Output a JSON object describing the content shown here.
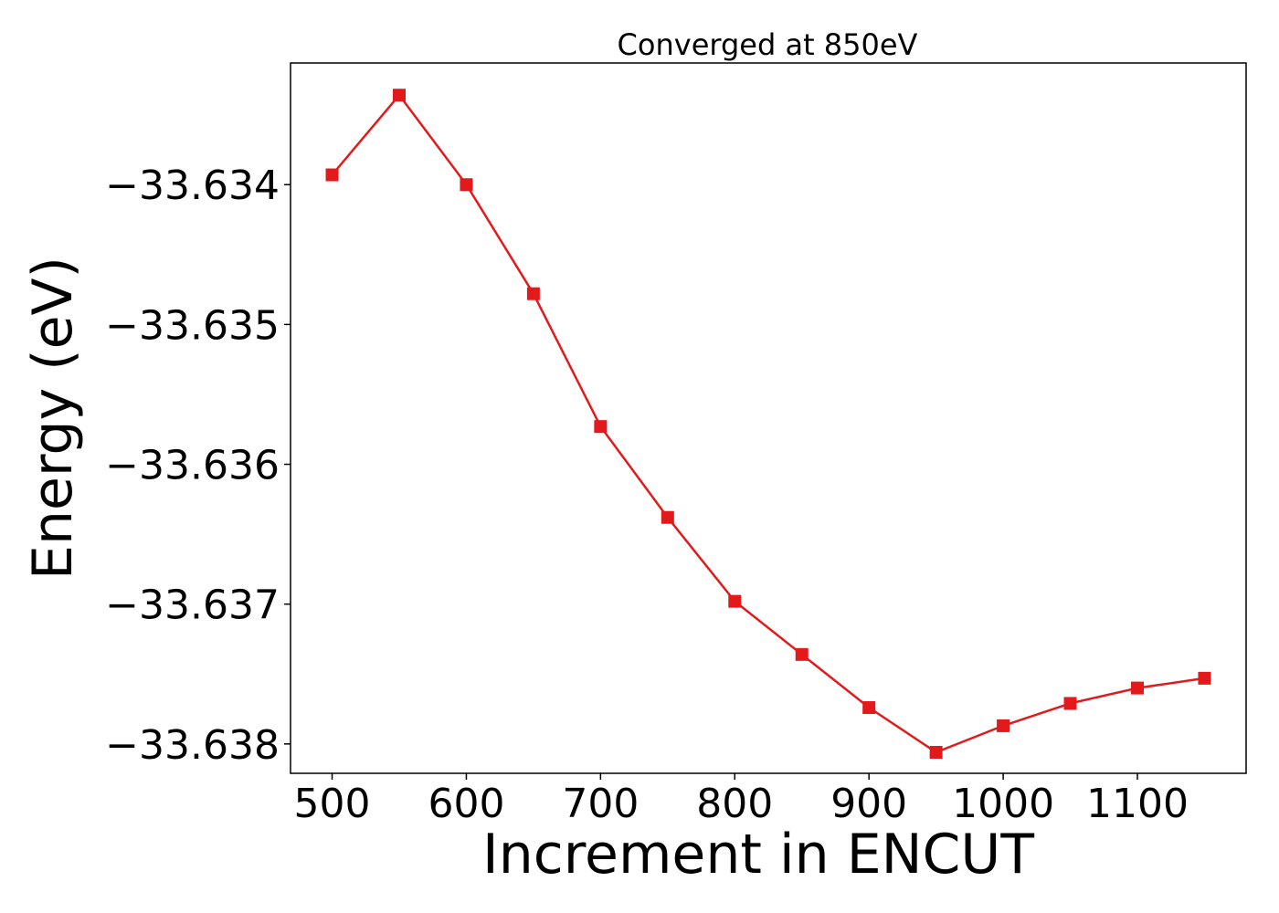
{
  "chart_data": {
    "type": "line",
    "title": "Converged at 850eV",
    "xlabel": "Increment in ENCUT",
    "ylabel": "Energy (eV)",
    "xlim": [
      469,
      1181
    ],
    "ylim": [
      -33.63821,
      -33.63313
    ],
    "xticks": [
      500,
      600,
      700,
      800,
      900,
      1000,
      1100
    ],
    "xtick_labels": [
      "500",
      "600",
      "700",
      "800",
      "900",
      "1000",
      "1100"
    ],
    "yticks": [
      -33.634,
      -33.635,
      -33.636,
      -33.637,
      -33.638
    ],
    "ytick_labels": [
      "−33.634",
      "−33.635",
      "−33.636",
      "−33.637",
      "−33.638"
    ],
    "grid": false,
    "series": [
      {
        "color": "#e31a1c",
        "marker": "square",
        "x": [
          500,
          550,
          600,
          650,
          700,
          750,
          800,
          850,
          900,
          950,
          1000,
          1050,
          1100,
          1150
        ],
        "y": [
          -33.63393,
          -33.63336,
          -33.634,
          -33.63478,
          -33.63573,
          -33.63638,
          -33.63698,
          -33.63736,
          -33.63774,
          -33.63806,
          -33.63787,
          -33.63771,
          -33.6376,
          -33.63753
        ]
      }
    ]
  }
}
